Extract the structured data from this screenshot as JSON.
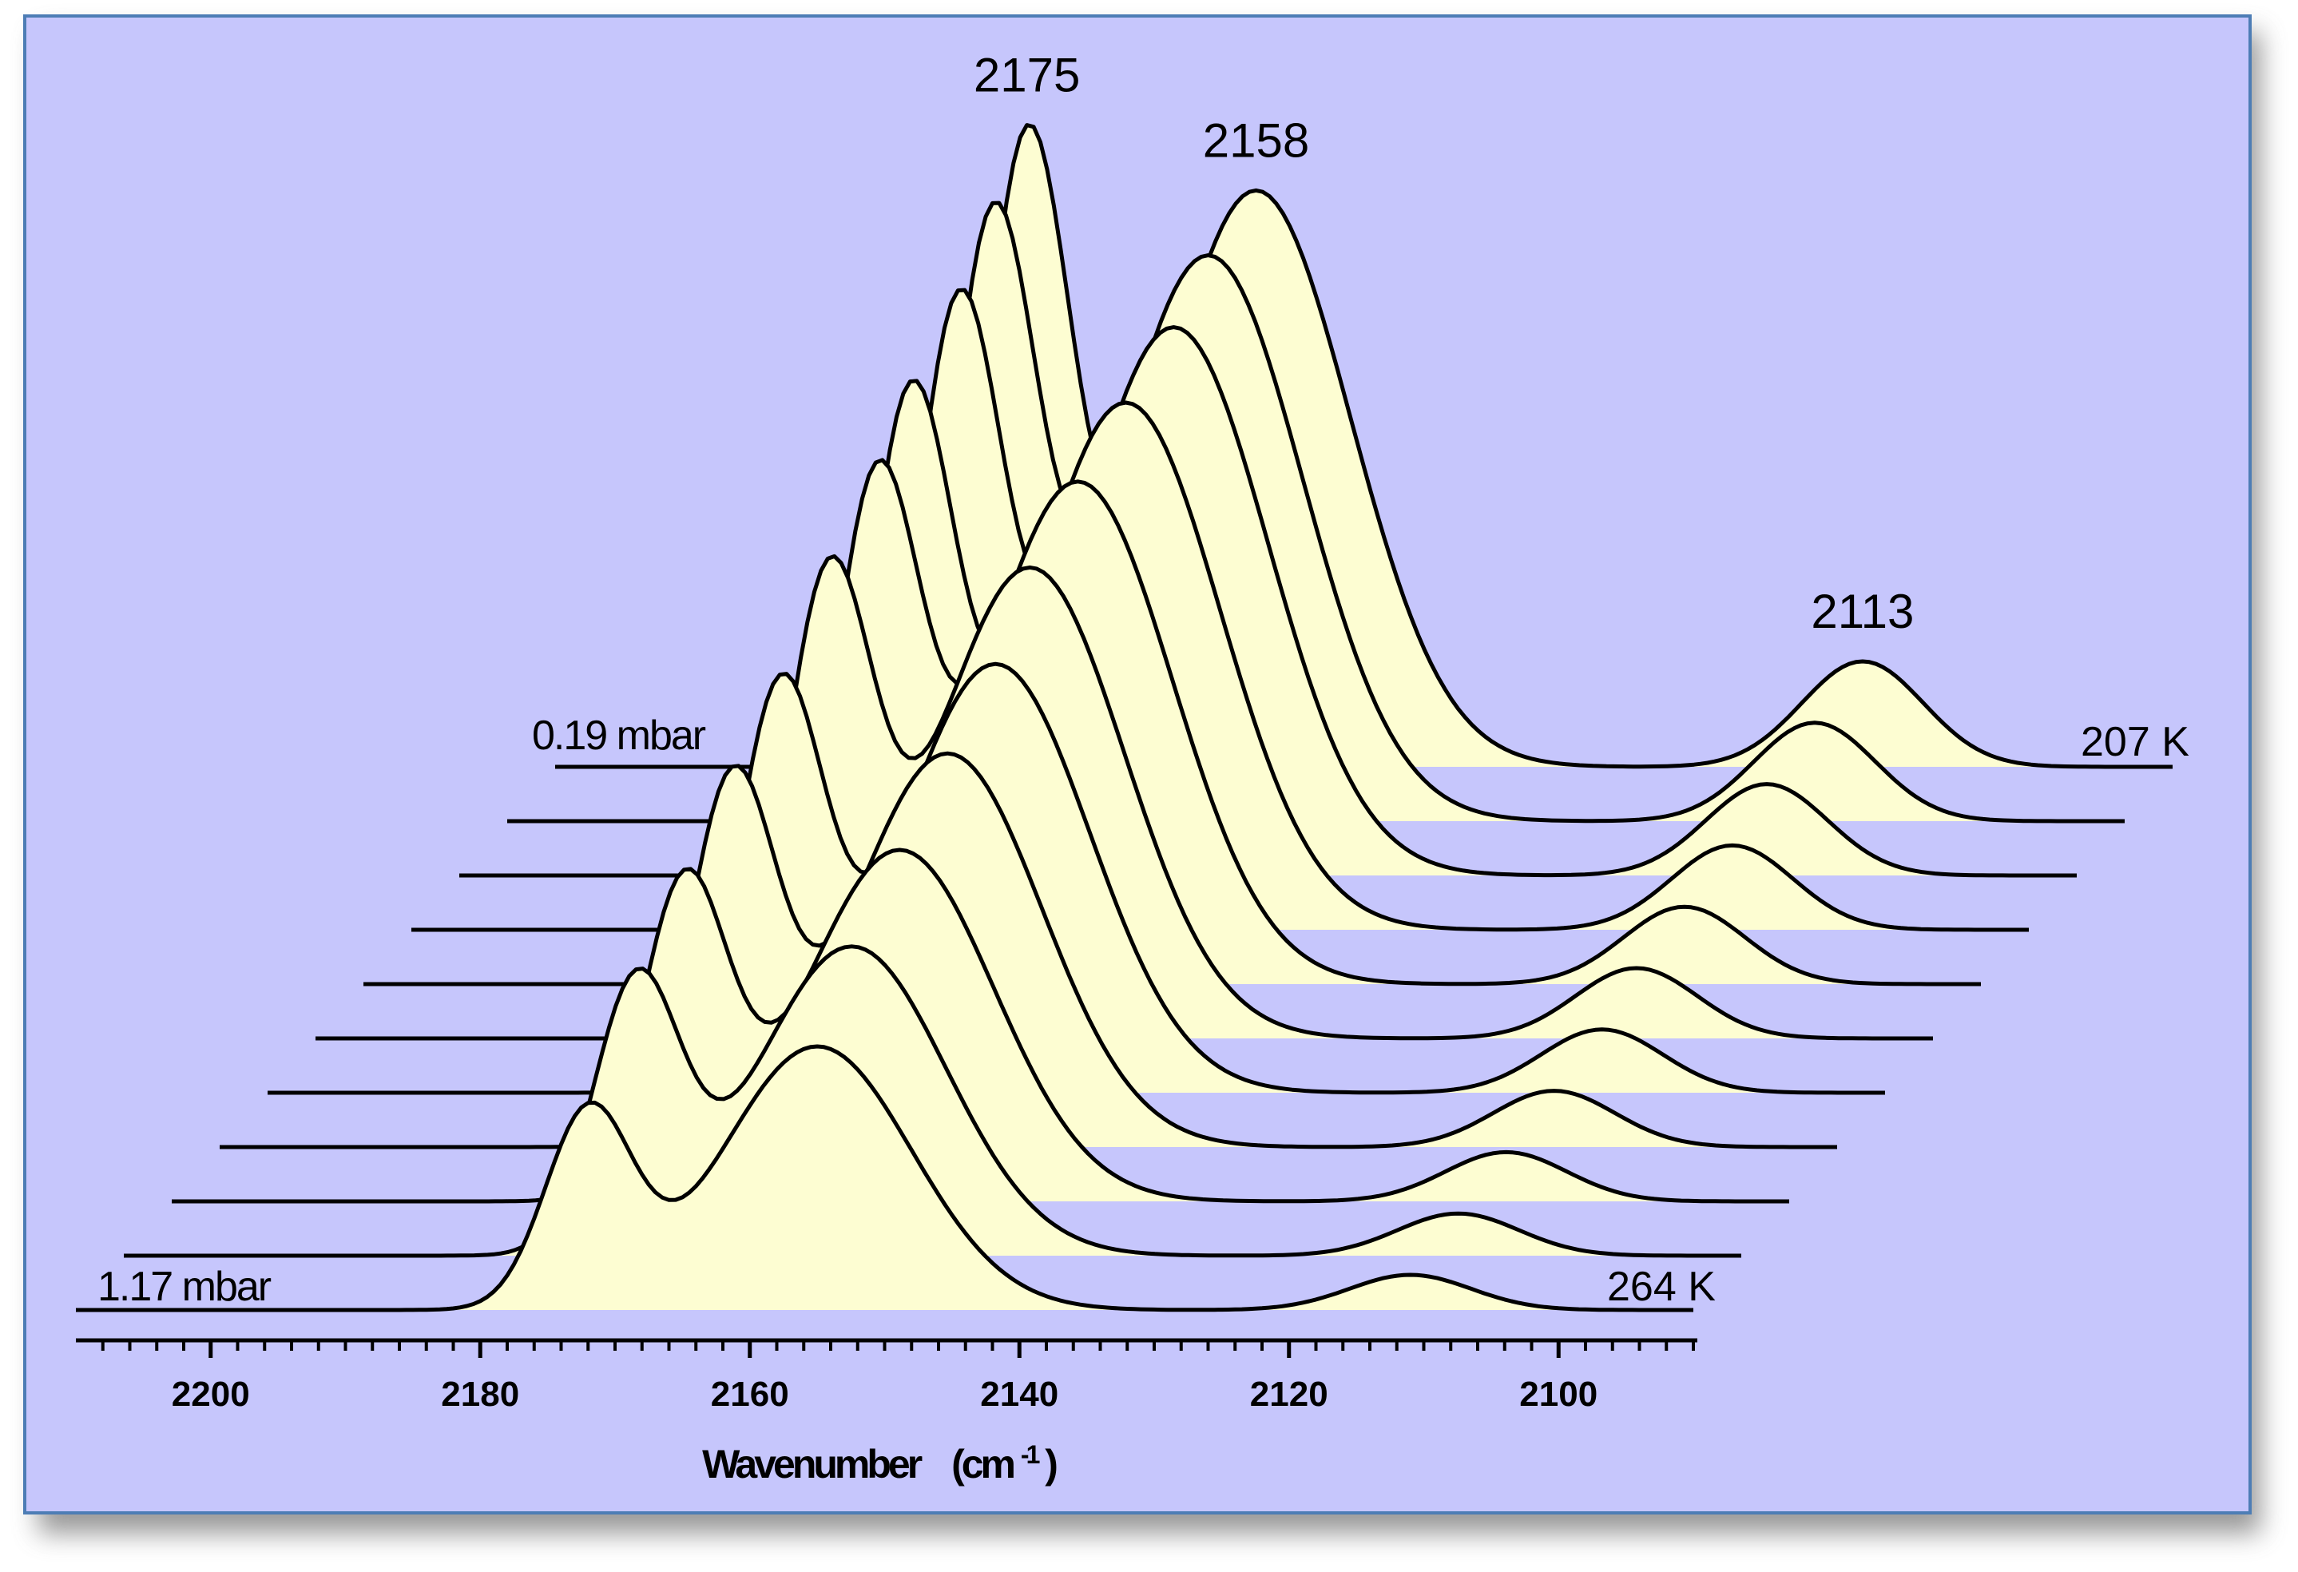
{
  "chart_data": {
    "type": "line",
    "subtype": "waterfall",
    "title": "",
    "xlabel": "Wavenumber",
    "xlabel_unit_main": "(cm",
    "xlabel_unit_sup": "-1",
    "xlabel_unit_close": ")",
    "xlim": [
      2210,
      2090
    ],
    "x_reversed": true,
    "x_ticks": [
      2200,
      2180,
      2160,
      2140,
      2120,
      2100
    ],
    "x_tick_labels": [
      "2200",
      "2180",
      "2160",
      "2140",
      "2120",
      "2100"
    ],
    "grid": false,
    "legend": "none",
    "fill_color": "#fdfdd2",
    "background_color": "#c6c6fc",
    "line_color": "#000000",
    "peak_annotations": [
      "2175",
      "2158",
      "2113"
    ],
    "front_label_pressure": "1.17  mbar",
    "front_label_temperature": "264  K",
    "back_label_pressure": "0.19  mbar",
    "back_label_temperature": "207  K",
    "series": [
      {
        "peaks": [
          {
            "x": 2172,
            "h": 0.55,
            "w": 3.2
          },
          {
            "x": 2155,
            "h": 0.75,
            "w": 7.0
          },
          {
            "x": 2111,
            "h": 0.1,
            "w": 4.5
          }
        ]
      },
      {
        "peaks": [
          {
            "x": 2172,
            "h": 0.75,
            "w": 3.2
          },
          {
            "x": 2156,
            "h": 0.88,
            "w": 7.0
          },
          {
            "x": 2111,
            "h": 0.12,
            "w": 4.5
          }
        ]
      },
      {
        "peaks": [
          {
            "x": 2172,
            "h": 0.87,
            "w": 3.2
          },
          {
            "x": 2156,
            "h": 1.0,
            "w": 7.0
          },
          {
            "x": 2111,
            "h": 0.14,
            "w": 4.5
          }
        ]
      },
      {
        "peaks": [
          {
            "x": 2172,
            "h": 1.0,
            "w": 3.2
          },
          {
            "x": 2156,
            "h": 1.12,
            "w": 7.0
          },
          {
            "x": 2111,
            "h": 0.16,
            "w": 4.5
          }
        ]
      },
      {
        "peaks": [
          {
            "x": 2172,
            "h": 1.1,
            "w": 3.2
          },
          {
            "x": 2156,
            "h": 1.22,
            "w": 7.0
          },
          {
            "x": 2111,
            "h": 0.18,
            "w": 4.5
          }
        ]
      },
      {
        "peaks": [
          {
            "x": 2172,
            "h": 1.23,
            "w": 3.2
          },
          {
            "x": 2157,
            "h": 1.34,
            "w": 7.0
          },
          {
            "x": 2112,
            "h": 0.2,
            "w": 4.5
          }
        ]
      },
      {
        "peaks": [
          {
            "x": 2172,
            "h": 1.34,
            "w": 3.2
          },
          {
            "x": 2157,
            "h": 1.43,
            "w": 7.0
          },
          {
            "x": 2112,
            "h": 0.22,
            "w": 4.5
          }
        ]
      },
      {
        "peaks": [
          {
            "x": 2173,
            "h": 1.45,
            "w": 3.2
          },
          {
            "x": 2157,
            "h": 1.5,
            "w": 7.0
          },
          {
            "x": 2112,
            "h": 0.24,
            "w": 4.5
          }
        ]
      },
      {
        "peaks": [
          {
            "x": 2173,
            "h": 1.55,
            "w": 3.2
          },
          {
            "x": 2157,
            "h": 1.56,
            "w": 7.0
          },
          {
            "x": 2113,
            "h": 0.26,
            "w": 4.5
          }
        ]
      },
      {
        "peaks": [
          {
            "x": 2174,
            "h": 1.64,
            "w": 3.2
          },
          {
            "x": 2158,
            "h": 1.61,
            "w": 7.0
          },
          {
            "x": 2113,
            "h": 0.28,
            "w": 4.5
          }
        ]
      },
      {
        "peaks": [
          {
            "x": 2175,
            "h": 1.74,
            "w": 3.2
          },
          {
            "x": 2158,
            "h": 1.64,
            "w": 7.0
          },
          {
            "x": 2113,
            "h": 0.3,
            "w": 4.5
          }
        ]
      }
    ]
  }
}
